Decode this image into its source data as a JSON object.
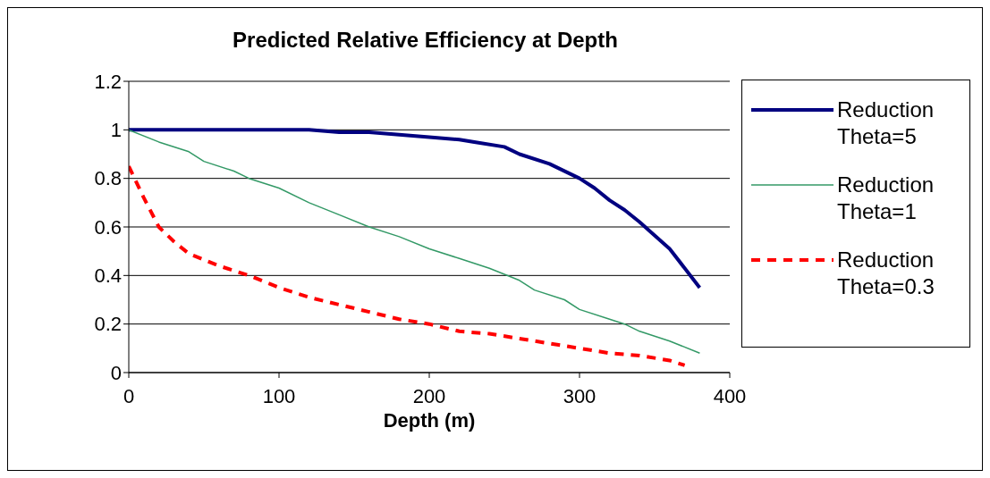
{
  "chart_data": {
    "type": "line",
    "title": "Predicted Relative Efficiency at Depth",
    "xlabel": "Depth (m)",
    "xlim": [
      0,
      400
    ],
    "xticks": [
      0,
      100,
      200,
      300,
      400
    ],
    "ylim": [
      0,
      1.2
    ],
    "yticks": [
      0,
      0.2,
      0.4,
      0.6,
      0.8,
      1,
      1.2
    ],
    "grid": "y",
    "legend": "right",
    "marker": "none",
    "series": [
      {
        "name": "Reduction Theta=5",
        "color": "#000080",
        "line_style": "solid",
        "x": [
          0,
          20,
          40,
          60,
          80,
          100,
          120,
          140,
          160,
          180,
          200,
          220,
          230,
          250,
          260,
          280,
          300,
          310,
          320,
          330,
          340,
          360,
          380
        ],
        "values": [
          1,
          1,
          1,
          1,
          1,
          1,
          1,
          0.99,
          0.99,
          0.98,
          0.97,
          0.96,
          0.95,
          0.93,
          0.9,
          0.86,
          0.8,
          0.76,
          0.71,
          0.67,
          0.62,
          0.51,
          0.35
        ]
      },
      {
        "name": "Reduction Theta=1",
        "color": "#339966",
        "line_style": "solid",
        "x": [
          0,
          20,
          40,
          50,
          70,
          80,
          100,
          120,
          140,
          160,
          180,
          200,
          220,
          240,
          260,
          270,
          290,
          300,
          320,
          330,
          340,
          360,
          380
        ],
        "values": [
          1,
          0.95,
          0.91,
          0.87,
          0.83,
          0.8,
          0.76,
          0.7,
          0.65,
          0.6,
          0.56,
          0.51,
          0.47,
          0.43,
          0.38,
          0.34,
          0.3,
          0.26,
          0.22,
          0.2,
          0.17,
          0.13,
          0.08
        ]
      },
      {
        "name": "Reduction Theta=0.3",
        "color": "#ff0000",
        "line_style": "dashed",
        "x": [
          0,
          10,
          20,
          30,
          40,
          60,
          80,
          100,
          120,
          140,
          160,
          180,
          200,
          220,
          240,
          260,
          280,
          300,
          310,
          320,
          340,
          360,
          370
        ],
        "values": [
          0.85,
          0.72,
          0.6,
          0.54,
          0.49,
          0.44,
          0.4,
          0.35,
          0.31,
          0.28,
          0.25,
          0.22,
          0.2,
          0.17,
          0.16,
          0.14,
          0.12,
          0.1,
          0.09,
          0.08,
          0.07,
          0.05,
          0.03
        ]
      }
    ]
  }
}
